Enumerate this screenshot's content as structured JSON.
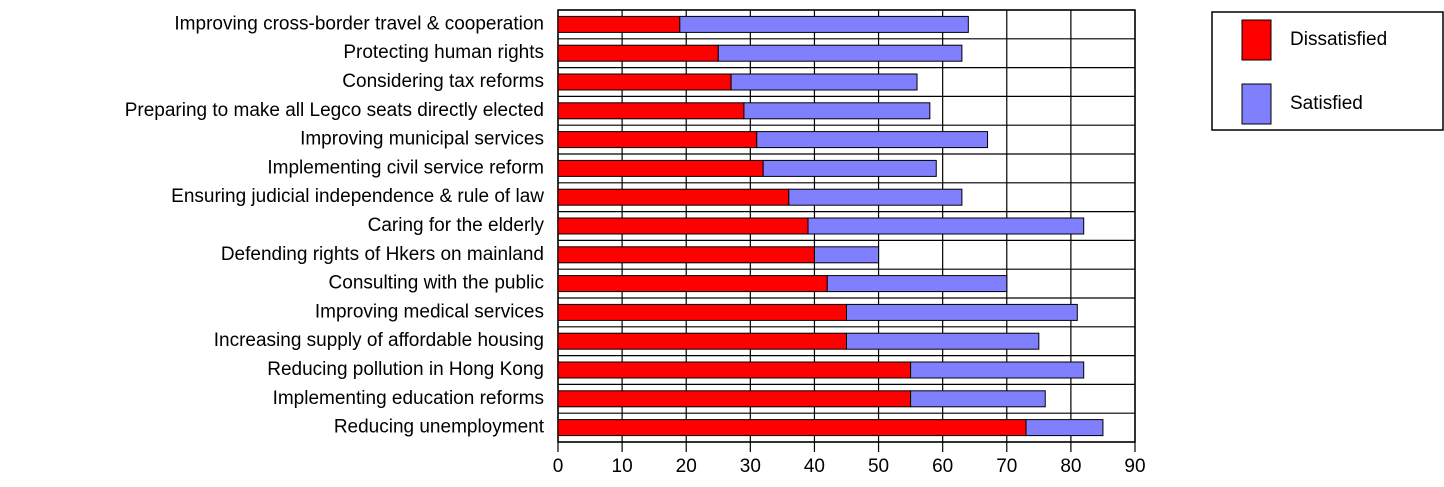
{
  "chart_data": {
    "type": "stacked-barh",
    "categories": [
      "Improving cross-border travel & cooperation",
      "Protecting human rights",
      "Considering tax reforms",
      "Preparing to make all Legco seats directly elected",
      "Improving municipal services",
      "Implementing civil service reform",
      "Ensuring judicial independence & rule of law",
      "Caring for the elderly",
      "Defending rights of Hkers on mainland",
      "Consulting with the public",
      "Improving medical services",
      "Increasing supply of affordable housing",
      "Reducing pollution in Hong Kong",
      "Implementing education reforms",
      "Reducing unemployment"
    ],
    "series": [
      {
        "name": "Dissatisfied",
        "color": "#ff0000",
        "values": [
          19,
          25,
          27,
          29,
          31,
          32,
          36,
          39,
          40,
          42,
          45,
          45,
          55,
          55,
          73
        ]
      },
      {
        "name": "Satisfied",
        "color": "#8080ff",
        "values": [
          45,
          38,
          29,
          29,
          36,
          27,
          27,
          43,
          10,
          28,
          36,
          30,
          27,
          21,
          12
        ]
      }
    ],
    "xlim": [
      0,
      90
    ],
    "xticks": [
      0,
      10,
      20,
      30,
      40,
      50,
      60,
      70,
      80,
      90
    ],
    "grid": true
  }
}
